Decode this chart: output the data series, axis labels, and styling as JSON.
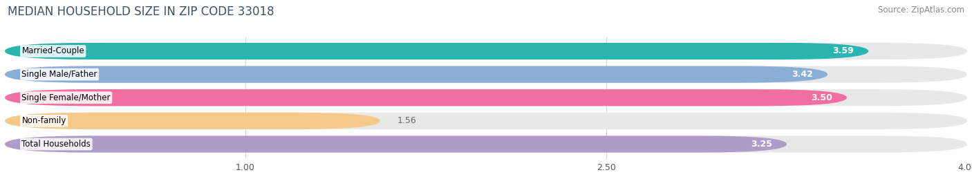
{
  "title": "MEDIAN HOUSEHOLD SIZE IN ZIP CODE 33018",
  "source": "Source: ZipAtlas.com",
  "categories": [
    "Married-Couple",
    "Single Male/Father",
    "Single Female/Mother",
    "Non-family",
    "Total Households"
  ],
  "values": [
    3.59,
    3.42,
    3.5,
    1.56,
    3.25
  ],
  "bar_colors": [
    "#2ab5b0",
    "#8aaed6",
    "#f06fa0",
    "#f5c98a",
    "#b09cc8"
  ],
  "bar_bg_color": "#e8e8e8",
  "xlim_min": 0.0,
  "xlim_max": 4.0,
  "xticks": [
    1.0,
    2.5,
    4.0
  ],
  "title_color": "#3d5068",
  "source_color": "#888888",
  "label_color_dark": "#666666",
  "label_color_white": "#ffffff",
  "bar_height": 0.72,
  "bar_gap": 1.0,
  "title_fontsize": 12,
  "source_fontsize": 8.5,
  "tick_fontsize": 9,
  "value_fontsize": 9,
  "category_fontsize": 8.5,
  "background_color": "#ffffff",
  "fig_width": 14.06,
  "fig_height": 2.69
}
